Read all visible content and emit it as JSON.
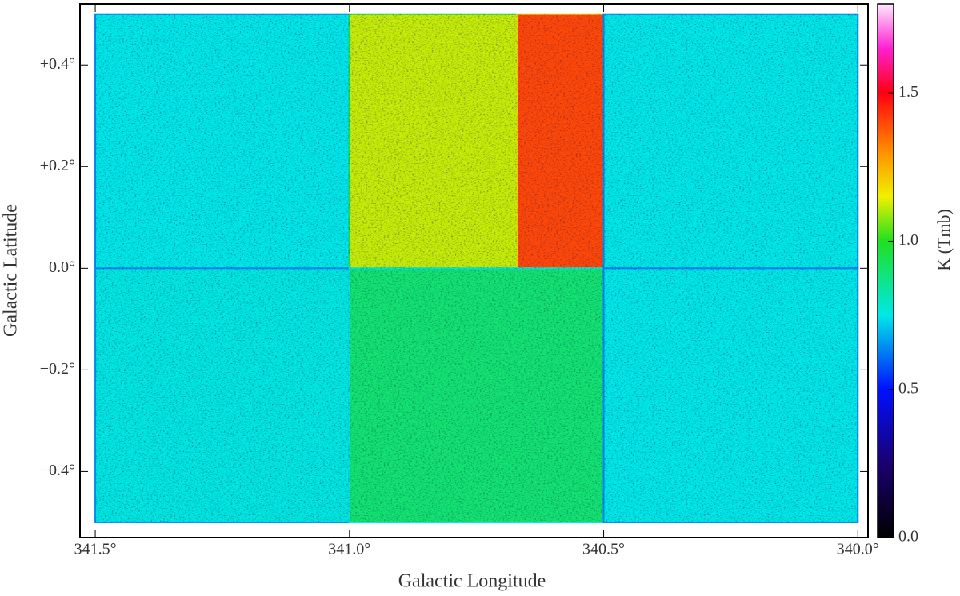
{
  "chart_data": {
    "type": "map",
    "xlabel": "Galactic Longitude",
    "ylabel": "Galactic Latitude",
    "colorbar_label": "K (Tmb)",
    "xlim": [
      341.53,
      339.98
    ],
    "ylim": [
      -0.53,
      0.52
    ],
    "xticks": [
      {
        "value": 341.5,
        "label": "341.5°"
      },
      {
        "value": 341.0,
        "label": "341.0°"
      },
      {
        "value": 340.5,
        "label": "340.5°"
      },
      {
        "value": 340.0,
        "label": "340.0°"
      }
    ],
    "yticks": [
      {
        "value": -0.4,
        "label": "−0.4°"
      },
      {
        "value": -0.2,
        "label": "−0.2°"
      },
      {
        "value": 0,
        "label": "0.0°"
      },
      {
        "value": 0.2,
        "label": "+0.2°"
      },
      {
        "value": 0.4,
        "label": "+0.4°"
      }
    ],
    "clim": [
      0,
      1.8
    ],
    "cticks": [
      {
        "value": 0,
        "label": "0.0"
      },
      {
        "value": 0.5,
        "label": "0.5"
      },
      {
        "value": 1.0,
        "label": "1.0"
      },
      {
        "value": 1.5,
        "label": "1.5"
      }
    ],
    "colormap": [
      {
        "value": 0,
        "color": "#000000"
      },
      {
        "value": 0.25,
        "color": "#1a0070"
      },
      {
        "value": 0.5,
        "color": "#0010ff"
      },
      {
        "value": 0.75,
        "color": "#00e8e8"
      },
      {
        "value": 1.0,
        "color": "#20e020"
      },
      {
        "value": 1.15,
        "color": "#f0f000"
      },
      {
        "value": 1.3,
        "color": "#ff9000"
      },
      {
        "value": 1.5,
        "color": "#ff0010"
      },
      {
        "value": 1.65,
        "color": "#ff20d0"
      },
      {
        "value": 1.8,
        "color": "#ffe8ff"
      }
    ],
    "regions": [
      {
        "x": [
          341.5,
          341.0
        ],
        "y": [
          0,
          0.5
        ],
        "value": 0.75
      },
      {
        "x": [
          341.0,
          340.67
        ],
        "y": [
          0,
          0.5
        ],
        "value": 1.12
      },
      {
        "x": [
          340.67,
          340.5
        ],
        "y": [
          0,
          0.5
        ],
        "value": 1.4
      },
      {
        "x": [
          340.5,
          340.0
        ],
        "y": [
          0,
          0.5
        ],
        "value": 0.75
      },
      {
        "x": [
          341.5,
          341.0
        ],
        "y": [
          -0.5,
          0
        ],
        "value": 0.76
      },
      {
        "x": [
          341.0,
          340.5
        ],
        "y": [
          -0.5,
          0
        ],
        "value": 0.9
      },
      {
        "x": [
          340.5,
          340.0
        ],
        "y": [
          -0.5,
          0
        ],
        "value": 0.75
      }
    ]
  }
}
